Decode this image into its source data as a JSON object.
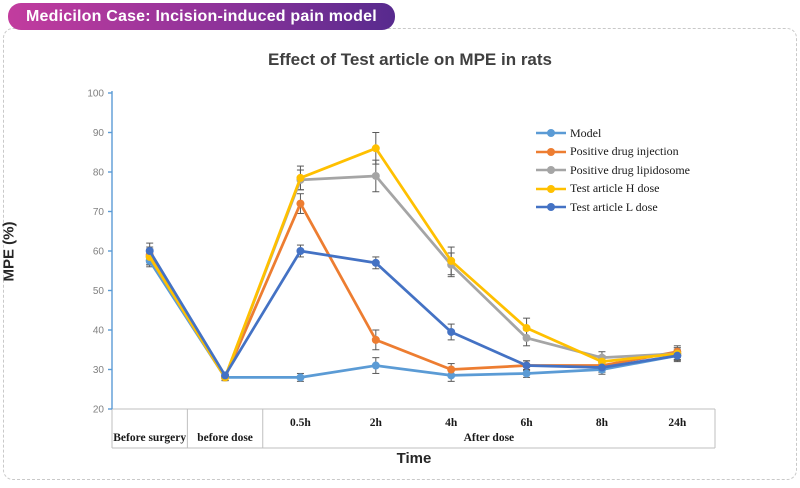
{
  "header": {
    "badge_label": "Medicilon Case: Incision-induced pain model",
    "badge_color_left": "#c23c9e",
    "badge_color_right": "#572a8e"
  },
  "chart_data": {
    "type": "line",
    "title": "Effect of Test article on MPE in rats",
    "xlabel": "Time",
    "ylabel": "MPE (%)",
    "ylim": [
      20,
      100
    ],
    "y_ticks": [
      100,
      90,
      80,
      70,
      60,
      50,
      40,
      30,
      20
    ],
    "grid": false,
    "legend_position": "inside-top-right",
    "categories": [
      "Before surgery",
      "before dose",
      "0.5h",
      "2h",
      "4h",
      "6h",
      "8h",
      "24h"
    ],
    "x_groups": [
      {
        "label": "Before surgery",
        "start": 0,
        "end": 0
      },
      {
        "label": "before dose",
        "start": 1,
        "end": 1
      },
      {
        "label": "After dose",
        "start": 2,
        "end": 7
      }
    ],
    "series": [
      {
        "name": "Model",
        "color": "#5B9BD5",
        "values": [
          57.5,
          28,
          28,
          31,
          28.5,
          29,
          30,
          33.5
        ],
        "errors": [
          1.5,
          0.8,
          1,
          2,
          1.5,
          1,
          1.2,
          1.2
        ]
      },
      {
        "name": "Positive drug injection",
        "color": "#ED7D31",
        "values": [
          59,
          28,
          72,
          37.5,
          30,
          31,
          31,
          34.5
        ],
        "errors": [
          2,
          0.8,
          2.5,
          2.5,
          1.5,
          1.2,
          1.2,
          1.5
        ]
      },
      {
        "name": "Positive drug lipidosome",
        "color": "#A5A5A5",
        "values": [
          58.5,
          28,
          78,
          79,
          56.5,
          38,
          33,
          34
        ],
        "errors": [
          2,
          0.8,
          2.5,
          4,
          3,
          2,
          1.5,
          1.5
        ]
      },
      {
        "name": "Test article H dose",
        "color": "#FFC000",
        "values": [
          58.5,
          28,
          78.5,
          86,
          57.5,
          40.5,
          32,
          34
        ],
        "errors": [
          2,
          0.8,
          3,
          4,
          3.5,
          2.5,
          1.5,
          1.5
        ]
      },
      {
        "name": "Test article L dose",
        "color": "#4472C4",
        "values": [
          60,
          28.5,
          60,
          57,
          39.5,
          31,
          30.5,
          33.5
        ],
        "errors": [
          2,
          0.8,
          1.5,
          1.5,
          2,
          1.2,
          1.2,
          1.5
        ]
      }
    ],
    "colors": {
      "y_axis": "#5B9BD5",
      "table_border": "#bfbfbf",
      "error_bar": "#595959",
      "tick_label": "#808080",
      "category_label": "#1a1a1a"
    }
  }
}
